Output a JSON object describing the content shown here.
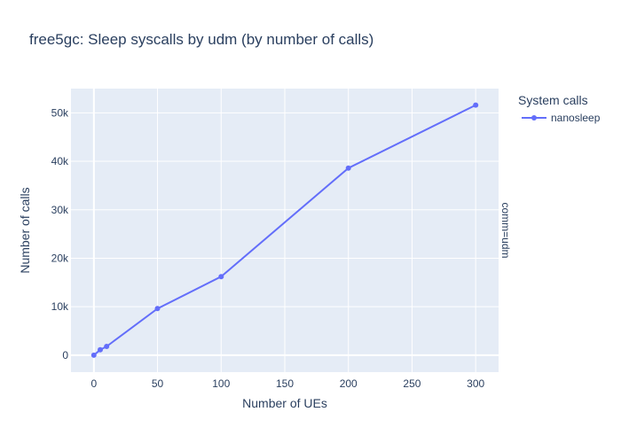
{
  "chart_data": {
    "type": "line",
    "title": "free5gc: Sleep syscalls by udm (by number of calls)",
    "xlabel": "Number of UEs",
    "ylabel": "Number of calls",
    "facet_label": "comm=udm",
    "legend_title": "System calls",
    "legend_position": "top-right",
    "grid": true,
    "xlim": [
      -18,
      318
    ],
    "ylim": [
      -3500,
      55000
    ],
    "x_ticks": [
      0,
      50,
      100,
      150,
      200,
      250,
      300
    ],
    "x_tick_labels": [
      "0",
      "50",
      "100",
      "150",
      "200",
      "250",
      "300"
    ],
    "y_ticks": [
      0,
      10000,
      20000,
      30000,
      40000,
      50000
    ],
    "y_tick_labels": [
      "0",
      "10k",
      "20k",
      "30k",
      "40k",
      "50k"
    ],
    "series": [
      {
        "name": "nanosleep",
        "color": "#636efa",
        "x": [
          0,
          5,
          10,
          50,
          100,
          200,
          300
        ],
        "y": [
          0,
          1100,
          1800,
          9600,
          16200,
          38600,
          51600
        ]
      }
    ]
  }
}
